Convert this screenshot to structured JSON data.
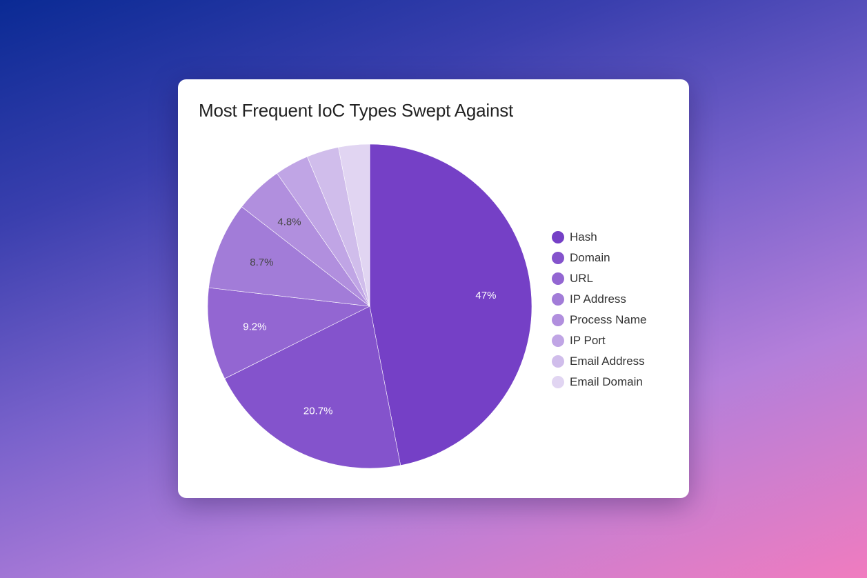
{
  "chart_data": {
    "type": "pie",
    "title": "Most Frequent IoC Types Swept Against",
    "legend_position": "right",
    "slices": [
      {
        "label": "Hash",
        "value": 47,
        "data_label": "47%",
        "color": "#7540c6"
      },
      {
        "label": "Domain",
        "value": 20.7,
        "data_label": "20.7%",
        "color": "#8453cc"
      },
      {
        "label": "URL",
        "value": 9.2,
        "data_label": "9.2%",
        "color": "#9366d2"
      },
      {
        "label": "IP Address",
        "value": 8.7,
        "data_label": "8.7%",
        "color": "#a27cd8"
      },
      {
        "label": "Process Name",
        "value": 4.8,
        "data_label": "4.8%",
        "color": "#b18fde"
      },
      {
        "label": "IP Port",
        "value": 3.4,
        "data_label": "",
        "color": "#c0a5e5"
      },
      {
        "label": "Email Address",
        "value": 3.2,
        "data_label": "",
        "color": "#d0bdeb"
      },
      {
        "label": "Email Domain",
        "value": 3.1,
        "data_label": "",
        "color": "#e1d5f2"
      }
    ]
  }
}
